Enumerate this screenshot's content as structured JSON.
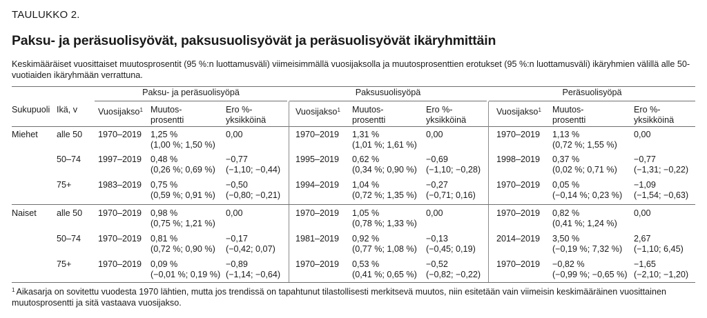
{
  "label": "TAULUKKO 2.",
  "title": "Paksu- ja peräsuolisyövät, paksusuolisyövät ja peräsuolisyövät ikäryhmittäin",
  "subtitle": "Keskimääräiset vuosittaiset muutosprosentit (95 %:n luottamusväli) viimeisimmällä vuosijaksolla ja muutosprosenttien erotukset (95 %:n luottamusväli) ikäryhmien välillä alle 50-vuotiaiden ikäryhmään verrattuna.",
  "groups": [
    "Paksu- ja peräsuolisyöpä",
    "Paksusuolisyöpä",
    "Peräsuolisyöpä"
  ],
  "headers": {
    "sex": "Sukupuoli",
    "age": "Ikä, v",
    "period": "Vuosijakso",
    "period_note": "1",
    "change_1": "Muutos-",
    "change_2": "prosentti",
    "diff_1": "Ero %-",
    "diff_2": "yksikköinä"
  },
  "rows": [
    {
      "sex": "Miehet",
      "age": "alle 50",
      "cells": [
        {
          "period": "1970–2019",
          "change": "1,25 %",
          "change_ci": "(1,00 %; 1,50 %)",
          "diff": "0,00",
          "diff_ci": ""
        },
        {
          "period": "1970–2019",
          "change": "1,31 %",
          "change_ci": "(1,01 %; 1,61 %)",
          "diff": "0,00",
          "diff_ci": ""
        },
        {
          "period": "1970–2019",
          "change": "1,13 %",
          "change_ci": "(0,72 %; 1,55 %)",
          "diff": "0,00",
          "diff_ci": ""
        }
      ]
    },
    {
      "sex": "",
      "age": "50–74",
      "cells": [
        {
          "period": "1997–2019",
          "change": "0,48 %",
          "change_ci": "(0,26 %; 0,69 %)",
          "diff": "−0,77",
          "diff_ci": "(−1,10; −0,44)"
        },
        {
          "period": "1995–2019",
          "change": "0,62 %",
          "change_ci": "(0,34 %; 0,90 %)",
          "diff": "−0,69",
          "diff_ci": "(−1,10; −0,28)"
        },
        {
          "period": "1998–2019",
          "change": "0,37 %",
          "change_ci": "(0,02 %; 0,71 %)",
          "diff": "−0,77",
          "diff_ci": "(−1,31; −0,22)"
        }
      ]
    },
    {
      "sex": "",
      "age": "75+",
      "cells": [
        {
          "period": "1983–2019",
          "change": "0,75 %",
          "change_ci": "(0,59 %; 0,91 %)",
          "diff": "−0,50",
          "diff_ci": "(−0,80; −0,21)"
        },
        {
          "period": "1994–2019",
          "change": "1,04 %",
          "change_ci": "(0,72 %; 1,35 %)",
          "diff": "−0,27",
          "diff_ci": "(−0,71; 0,16)"
        },
        {
          "period": "1970–2019",
          "change": "0,05 %",
          "change_ci": "(−0,14 %; 0,23 %)",
          "diff": "−1,09",
          "diff_ci": "(−1,54; −0,63)"
        }
      ]
    },
    {
      "sex": "Naiset",
      "age": "alle 50",
      "cells": [
        {
          "period": "1970–2019",
          "change": "0,98 %",
          "change_ci": "(0,75 %; 1,21 %)",
          "diff": "0,00",
          "diff_ci": ""
        },
        {
          "period": "1970–2019",
          "change": "1,05 %",
          "change_ci": "(0,78 %; 1,33 %)",
          "diff": "0,00",
          "diff_ci": ""
        },
        {
          "period": "1970–2019",
          "change": "0,82 %",
          "change_ci": "(0,41 %; 1,24 %)",
          "diff": "0,00",
          "diff_ci": ""
        }
      ]
    },
    {
      "sex": "",
      "age": "50–74",
      "cells": [
        {
          "period": "1970–2019",
          "change": "0,81 %",
          "change_ci": "(0,72 %; 0,90 %)",
          "diff": "−0,17",
          "diff_ci": "(−0,42; 0,07)"
        },
        {
          "period": "1981–2019",
          "change": "0,92 %",
          "change_ci": "(0,77 %; 1,08 %)",
          "diff": "−0,13",
          "diff_ci": "(−0,45; 0,19)"
        },
        {
          "period": "2014–2019",
          "change": "3,50 %",
          "change_ci": "(−0,19 %; 7,32 %)",
          "diff": "2,67",
          "diff_ci": "(−1,10; 6,45)"
        }
      ]
    },
    {
      "sex": "",
      "age": "75+",
      "cells": [
        {
          "period": "1970–2019",
          "change": "0,09 %",
          "change_ci": "(−0,01 %; 0,19 %)",
          "diff": "−0,89",
          "diff_ci": "(−1,14; −0,64)"
        },
        {
          "period": "1970–2019",
          "change": "0,53 %",
          "change_ci": "(0,41 %; 0,65 %)",
          "diff": "−0,52",
          "diff_ci": "(−0,82; −0,22)"
        },
        {
          "period": "1970–2019",
          "change": "−0,82 %",
          "change_ci": "(−0,99 %; −0,65 %)",
          "diff": "−1,65",
          "diff_ci": "(−2,10; −1,20)"
        }
      ]
    }
  ],
  "footnote_mark": "1",
  "footnote": "Aikasarja on sovitettu vuodesta 1970 lähtien, mutta jos trendissä on tapahtunut tilastollisesti merkitsevä muutos, niin esitetään vain viimeisin keskimääräinen vuosittainen muutosprosentti ja sitä vastaava vuosijakso."
}
